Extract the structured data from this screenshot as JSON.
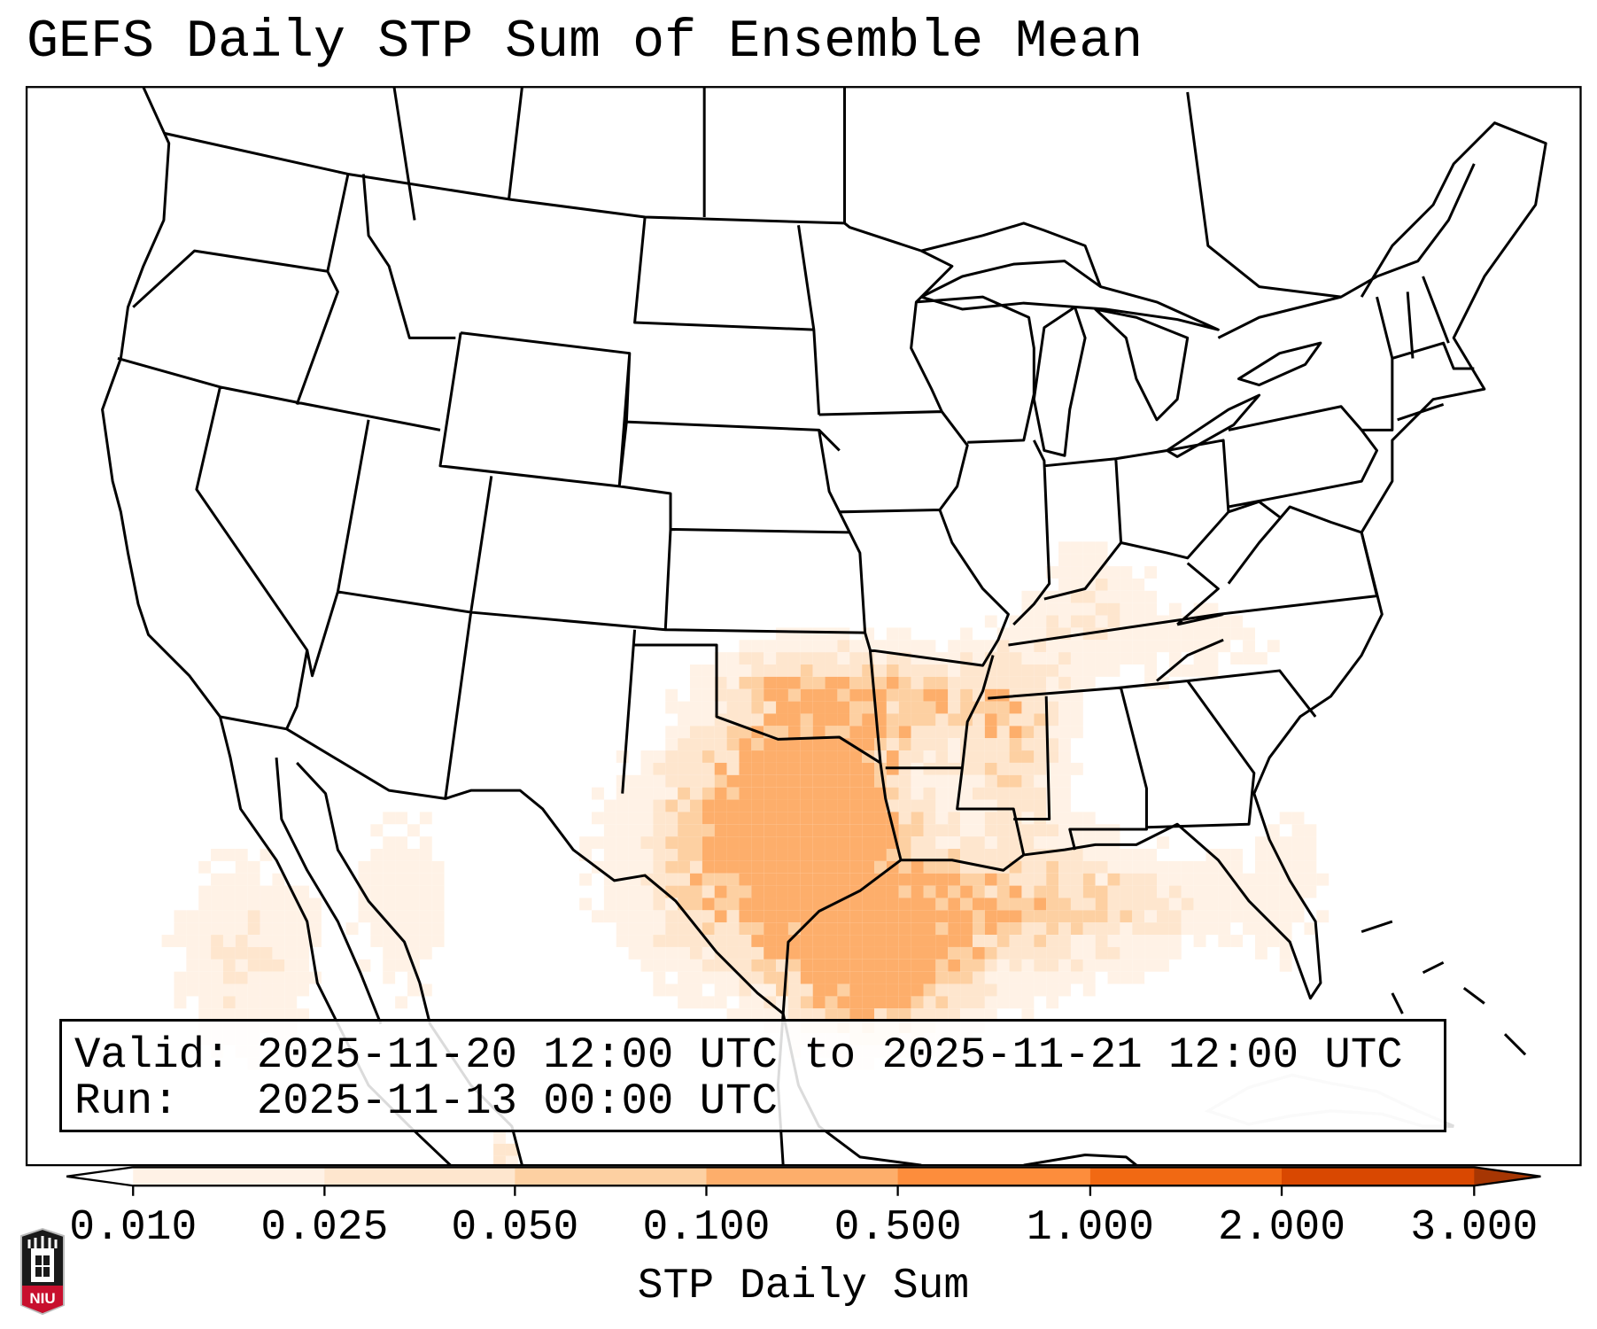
{
  "title": "GEFS Daily STP Sum of Ensemble Mean",
  "info": {
    "valid_line": "Valid: 2025-11-20 12:00 UTC to 2025-11-21 12:00 UTC",
    "run_line": "Run:   2025-11-13 00:00 UTC"
  },
  "colorbar": {
    "label": "STP Daily Sum",
    "ticks": [
      "0.010",
      "0.025",
      "0.050",
      "0.100",
      "0.500",
      "1.000",
      "2.000",
      "3.000"
    ],
    "bin_colors": [
      "#fff2e6",
      "#fee6ce",
      "#fdd0a2",
      "#fdae6b",
      "#fd8d3c",
      "#f16913",
      "#d94801"
    ],
    "under_color": "#ffffff",
    "over_color": "#a63603"
  },
  "logo": {
    "text": "NIU",
    "colors": {
      "shield": "#1a1a1a",
      "band": "#c8102e"
    }
  }
}
